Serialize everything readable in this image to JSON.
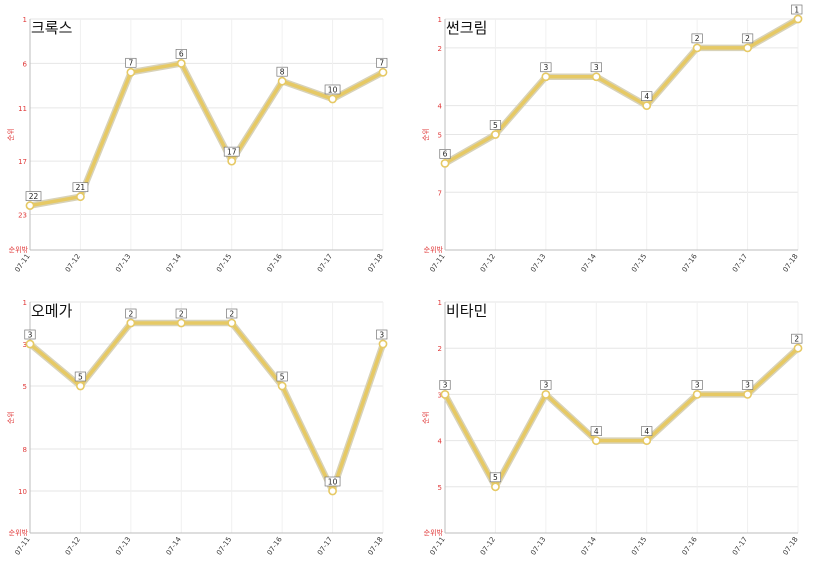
{
  "chart_data": [
    {
      "type": "line",
      "title": "크록스",
      "ylabel": "순위",
      "ybottom_label": "순위밖",
      "y_ticks": [
        1,
        6,
        11,
        17,
        23
      ],
      "y_reversed": true,
      "ylim": [
        1,
        27
      ],
      "categories": [
        "07-11",
        "07-12",
        "07-13",
        "07-14",
        "07-15",
        "07-16",
        "07-17",
        "07-18"
      ],
      "values": [
        22,
        21,
        7,
        6,
        17,
        8,
        10,
        7
      ],
      "line_color": "#e6c964",
      "grid": true
    },
    {
      "type": "line",
      "title": "썬크림",
      "ylabel": "순위",
      "ybottom_label": "순위밖",
      "y_ticks": [
        1,
        2,
        4,
        5,
        7
      ],
      "y_reversed": true,
      "ylim": [
        1,
        9
      ],
      "categories": [
        "07-11",
        "07-12",
        "07-13",
        "07-14",
        "07-15",
        "07-16",
        "07-17",
        "07-18"
      ],
      "values": [
        6,
        5,
        3,
        3,
        4,
        2,
        2,
        1
      ],
      "line_color": "#e6c964",
      "grid": true
    },
    {
      "type": "line",
      "title": "오메가",
      "ylabel": "순위",
      "ybottom_label": "순위밖",
      "y_ticks": [
        1,
        3,
        5,
        8,
        10
      ],
      "y_reversed": true,
      "ylim": [
        1,
        12
      ],
      "categories": [
        "07-11",
        "07-12",
        "07-13",
        "07-14",
        "07-15",
        "07-16",
        "07-17",
        "07-18"
      ],
      "values": [
        3,
        5,
        2,
        2,
        2,
        5,
        10,
        3
      ],
      "line_color": "#e6c964",
      "grid": true
    },
    {
      "type": "line",
      "title": "비타민",
      "ylabel": "순위",
      "ybottom_label": "순위밖",
      "y_ticks": [
        1,
        2,
        3,
        4,
        5
      ],
      "y_reversed": true,
      "ylim": [
        1,
        6
      ],
      "categories": [
        "07-11",
        "07-12",
        "07-13",
        "07-14",
        "07-15",
        "07-16",
        "07-17",
        "07-18"
      ],
      "values": [
        3,
        5,
        3,
        4,
        4,
        3,
        3,
        2
      ],
      "line_color": "#e6c964",
      "grid": true
    }
  ]
}
